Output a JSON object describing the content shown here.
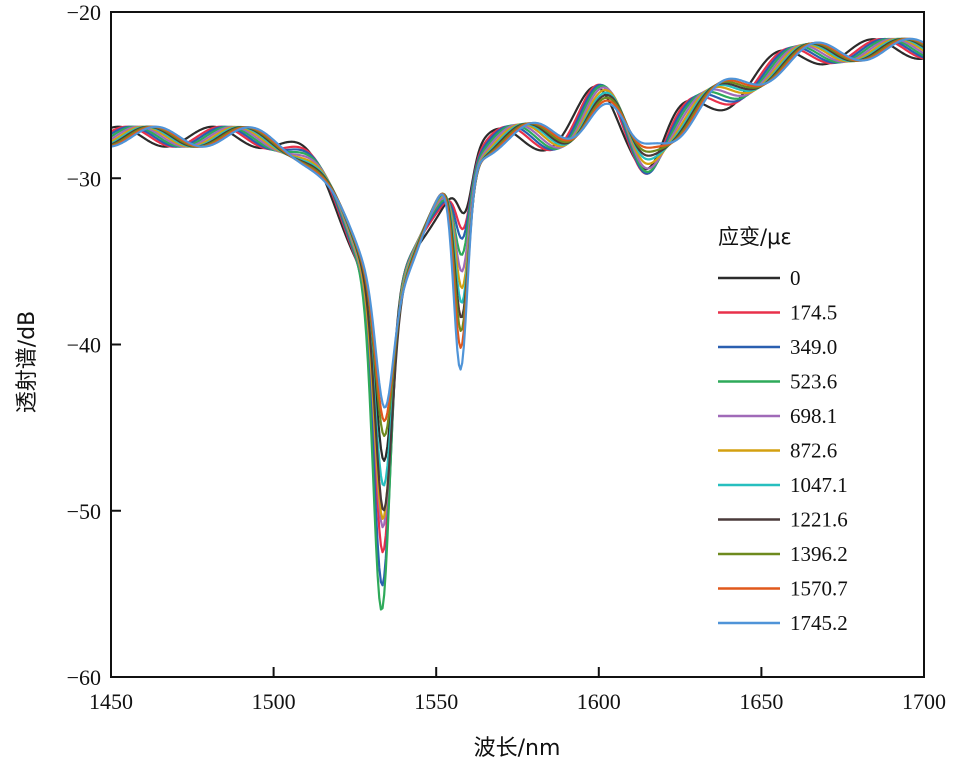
{
  "chart_data": {
    "type": "line",
    "xlabel": "波长/nm",
    "ylabel": "透射谱/dB",
    "xlim": [
      1450,
      1700
    ],
    "ylim": [
      -60,
      -20
    ],
    "xticks": [
      1450,
      1500,
      1550,
      1600,
      1650,
      1700
    ],
    "yticks": [
      -60,
      -50,
      -40,
      -30,
      -20
    ],
    "xtick_labels": [
      "1450",
      "1500",
      "1550",
      "1600",
      "1650",
      "1700"
    ],
    "ytick_labels": [
      "−60",
      "−50",
      "−40",
      "−30",
      "−20"
    ],
    "grid": false,
    "legend": {
      "title": "应变/με",
      "placement": "right"
    },
    "series": [
      {
        "name": "0",
        "color": "#2b2b2b",
        "main_min": -47.0,
        "main_center": 1534.0,
        "sec_min": -32.0,
        "sec_center": 1559.0,
        "shift": 4.0
      },
      {
        "name": "174.5",
        "color": "#e8304a",
        "main_min": -52.5,
        "main_center": 1533.6,
        "sec_min": -33.0,
        "sec_center": 1558.5,
        "shift": 3.0
      },
      {
        "name": "349.0",
        "color": "#2a5fb0",
        "main_min": -54.5,
        "main_center": 1533.4,
        "sec_min": -33.6,
        "sec_center": 1558.2,
        "shift": 2.5
      },
      {
        "name": "523.6",
        "color": "#2eaa5a",
        "main_min": -56.0,
        "main_center": 1533.2,
        "sec_min": -34.6,
        "sec_center": 1558.0,
        "shift": 2.0
      },
      {
        "name": "698.1",
        "color": "#a06ab8",
        "main_min": -51.0,
        "main_center": 1533.6,
        "sec_min": -35.6,
        "sec_center": 1558.0,
        "shift": 1.5
      },
      {
        "name": "872.6",
        "color": "#d4a010",
        "main_min": -50.5,
        "main_center": 1533.6,
        "sec_min": -36.6,
        "sec_center": 1558.0,
        "shift": 1.0
      },
      {
        "name": "1047.1",
        "color": "#27bfbf",
        "main_min": -48.5,
        "main_center": 1533.8,
        "sec_min": -37.5,
        "sec_center": 1557.9,
        "shift": 0.6
      },
      {
        "name": "1221.6",
        "color": "#4a3a3a",
        "main_min": -50.0,
        "main_center": 1533.8,
        "sec_min": -38.4,
        "sec_center": 1557.8,
        "shift": 0.3
      },
      {
        "name": "1396.2",
        "color": "#6e8a1e",
        "main_min": -45.5,
        "main_center": 1534.0,
        "sec_min": -39.2,
        "sec_center": 1557.7,
        "shift": 0.0
      },
      {
        "name": "1570.7",
        "color": "#e0581c",
        "main_min": -44.6,
        "main_center": 1534.0,
        "sec_min": -40.2,
        "sec_center": 1557.6,
        "shift": -0.3
      },
      {
        "name": "1745.2",
        "color": "#4f94d8",
        "main_min": -43.8,
        "main_center": 1534.1,
        "sec_min": -41.5,
        "sec_center": 1557.5,
        "shift": -0.6
      }
    ]
  }
}
